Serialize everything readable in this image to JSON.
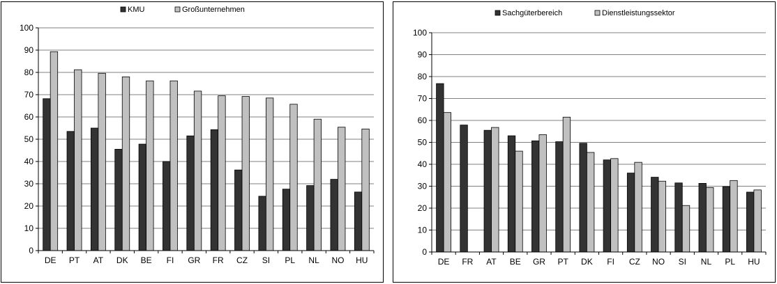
{
  "chart_data": [
    {
      "type": "bar",
      "categories": [
        "DE",
        "PT",
        "AT",
        "DK",
        "BE",
        "FI",
        "GR",
        "FR",
        "CZ",
        "SI",
        "PL",
        "NL",
        "NO",
        "HU"
      ],
      "series": [
        {
          "name": "KMU",
          "color": "#333333",
          "values": [
            68.2,
            53.5,
            55.0,
            45.5,
            47.8,
            40.0,
            51.5,
            54.3,
            36.2,
            24.4,
            27.6,
            29.2,
            32.0,
            26.3
          ]
        },
        {
          "name": "Großunternehmen",
          "color": "#c0c0c0",
          "values": [
            89.3,
            81.2,
            79.6,
            78.0,
            76.2,
            76.2,
            71.6,
            69.5,
            69.2,
            68.5,
            65.7,
            59.0,
            55.4,
            54.6
          ]
        }
      ],
      "ylim": [
        0,
        100
      ],
      "yticks": [
        0,
        10,
        20,
        30,
        40,
        50,
        60,
        70,
        80,
        90,
        100
      ],
      "grid": true,
      "legend_position": "top-center",
      "title": "",
      "xlabel": "",
      "ylabel": ""
    },
    {
      "type": "bar",
      "categories": [
        "DE",
        "FR",
        "AT",
        "BE",
        "GR",
        "PT",
        "DK",
        "FI",
        "CZ",
        "NO",
        "SI",
        "NL",
        "PL",
        "HU"
      ],
      "series": [
        {
          "name": "Sachgüterbereich",
          "color": "#333333",
          "values": [
            76.8,
            57.9,
            55.5,
            53.0,
            50.7,
            50.3,
            49.6,
            42.0,
            36.0,
            34.1,
            31.5,
            31.3,
            29.8,
            27.3
          ]
        },
        {
          "name": "Dienstleistungssektor",
          "color": "#c0c0c0",
          "values": [
            63.6,
            null,
            56.8,
            46.0,
            53.5,
            61.5,
            45.4,
            42.6,
            40.9,
            32.3,
            21.2,
            29.4,
            32.6,
            28.3
          ]
        }
      ],
      "ylim": [
        0,
        100
      ],
      "yticks": [
        0,
        10,
        20,
        30,
        40,
        50,
        60,
        70,
        80,
        90,
        100
      ],
      "grid": true,
      "legend_position": "top-center",
      "title": "",
      "xlabel": "",
      "ylabel": ""
    }
  ]
}
